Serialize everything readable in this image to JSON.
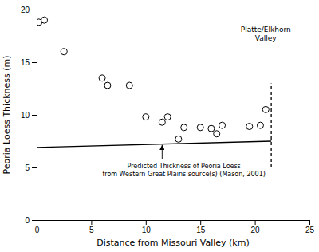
{
  "chart_data": {
    "type": "scatter",
    "xlabel": "Distance from Missouri Valley (km)",
    "ylabel": "Peoria Loess Thickness (m)",
    "xlim": [
      0,
      25
    ],
    "ylim": [
      0,
      20
    ],
    "xticks": [
      0,
      5,
      10,
      15,
      20,
      25
    ],
    "yticks": [
      0,
      5,
      10,
      15,
      20
    ],
    "grid": false,
    "series": [
      {
        "type": "scatter",
        "marker": "circle",
        "color": "white",
        "edge_color": "black",
        "x": [
          0.2,
          0.7,
          2.5,
          6.0,
          6.5,
          8.5,
          10.0,
          11.5,
          12.0,
          13.0,
          13.5,
          15.0,
          16.0,
          16.5,
          17.0,
          19.5,
          20.5,
          21.0
        ],
        "values": [
          18.8,
          19.0,
          16.0,
          13.5,
          12.8,
          12.8,
          9.8,
          9.3,
          9.8,
          7.7,
          8.8,
          8.8,
          8.7,
          8.2,
          9.0,
          8.9,
          9.0,
          10.5
        ]
      },
      {
        "type": "line",
        "line_style": "solid",
        "color": "black",
        "x": [
          0,
          21.5
        ],
        "values": [
          6.9,
          7.5
        ]
      },
      {
        "type": "line",
        "line_style": "dashed",
        "color": "black",
        "x": [
          21.5,
          21.5
        ],
        "values": [
          5.0,
          13.0
        ]
      }
    ],
    "annotations": [
      {
        "text": "Platte/Elkhorn\nValley",
        "x": 21.0,
        "y": 18.5
      },
      {
        "text": "Predicted Thickness of Peoria Loess\nfrom Western Great Plains source(s) (Mason, 2001)",
        "x": 13.5,
        "y": 5.5,
        "arrow_x": 11.5,
        "arrow_y": 7.15,
        "arrow_from_y": 5.8
      }
    ]
  }
}
